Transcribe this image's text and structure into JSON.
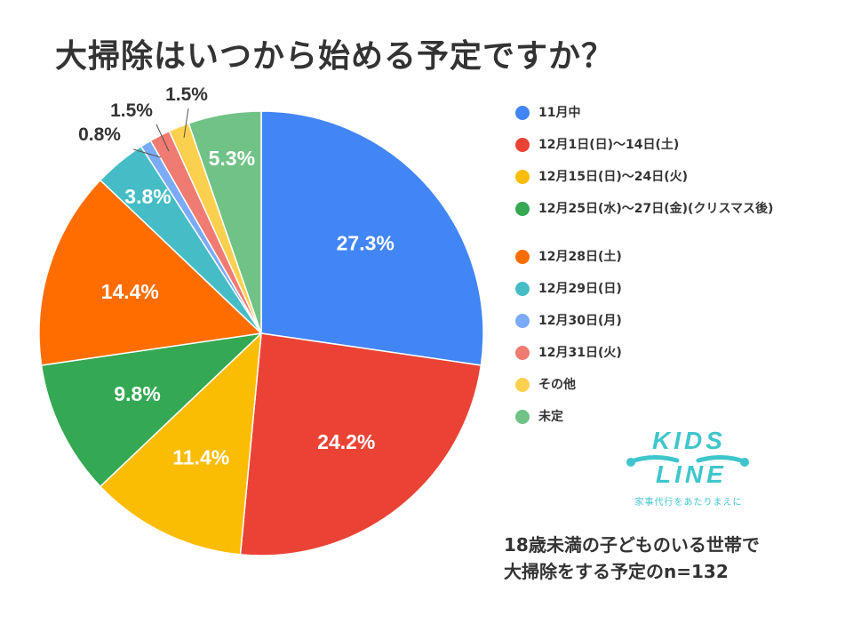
{
  "title": "大掃除はいつから始める予定ですか？",
  "chart_data": {
    "type": "pie",
    "labels": [
      "11月中",
      "12月1日(日)〜14日(土)",
      "12月15日(日)〜24日(火)",
      "12月25日(水)〜27日(金)(クリスマス後)",
      "12月28日(土)",
      "12月29日(日)",
      "12月30日(月)",
      "12月31日(火)",
      "その他",
      "未定"
    ],
    "values": [
      27.3,
      24.2,
      11.4,
      9.8,
      14.4,
      3.8,
      0.8,
      1.5,
      1.5,
      5.3
    ],
    "value_labels": [
      "27.3%",
      "24.2%",
      "11.4%",
      "9.8%",
      "14.4%",
      "3.8%",
      "0.8%",
      "1.5%",
      "1.5%",
      "5.3%"
    ],
    "colors": [
      "#4285f4",
      "#ea4335",
      "#fbbc04",
      "#34a853",
      "#ff6d01",
      "#46bdc6",
      "#7baaf7",
      "#f07b72",
      "#fcd04f",
      "#71c287"
    ],
    "legend_position": "right",
    "start_angle": "12 o'clock",
    "direction": "clockwise"
  },
  "logo": {
    "line1": "KIDS",
    "line2": "LINE",
    "subtitle": "家事代行をあたりまえに"
  },
  "note": {
    "line1": "18歳未満の子どものいる世帯で",
    "line2": "大掃除をする予定のn=132"
  }
}
